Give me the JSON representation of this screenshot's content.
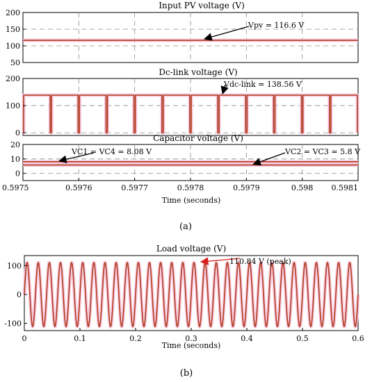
{
  "figure": {
    "caption_a": "(a)",
    "caption_b": "(b)",
    "colors": {
      "trace": "#b03a1e",
      "glow": "#f7c6dd",
      "grid": "#8a8a8a",
      "arrow_black": "#000000",
      "arrow_red": "#d61f1f"
    }
  },
  "chart_data": [
    {
      "id": "pv",
      "type": "line",
      "title": "Input PV voltage (V)",
      "xlim": [
        0.5975,
        0.5981
      ],
      "ylim": [
        50,
        200
      ],
      "yticks": [
        50,
        100,
        150,
        200
      ],
      "ygrid": [
        100,
        150
      ],
      "grid": true,
      "series": [
        {
          "x": [
            0.5975,
            0.5981
          ],
          "y": [
            116.6,
            116.6
          ]
        }
      ],
      "annotation": {
        "text": "Vpv = 116.6 V",
        "x": 0.59785,
        "y": 116.6,
        "color": "black"
      }
    },
    {
      "id": "dclink",
      "type": "line",
      "title": "Dc-link voltage (V)",
      "xlim": [
        0.5975,
        0.5981
      ],
      "ylim": [
        -10,
        200
      ],
      "yticks": [
        0,
        100,
        200
      ],
      "ygrid": [
        0,
        100
      ],
      "grid": true,
      "high": 138.56,
      "low": 0,
      "notch_times": [
        0.5975,
        0.59755,
        0.5976,
        0.59765,
        0.5977,
        0.59775,
        0.5978,
        0.59785,
        0.5979,
        0.59795,
        0.598,
        0.59805,
        0.5981
      ],
      "annotation": {
        "text": "Vdc-link = 138.56 V",
        "x": 0.59785,
        "y": 138.56,
        "color": "black"
      }
    },
    {
      "id": "caps",
      "type": "line",
      "title": "Capacitor voltage (V)",
      "xlim": [
        0.5975,
        0.5981
      ],
      "ylim": [
        -5,
        20
      ],
      "yticks": [
        0,
        10,
        20
      ],
      "ygrid": [
        0,
        10
      ],
      "grid": true,
      "xticks": [
        0.5975,
        0.5976,
        0.5977,
        0.5978,
        0.5979,
        0.598,
        0.5981
      ],
      "xlabel": "Time (seconds)",
      "series": [
        {
          "x": [
            0.5975,
            0.5981
          ],
          "y": [
            8.08,
            8.08
          ]
        },
        {
          "x": [
            0.5975,
            0.5981
          ],
          "y": [
            5.8,
            5.8
          ]
        }
      ],
      "annotations": [
        {
          "text": "VC1 = VC4 = 8.08 V",
          "x": 0.59755,
          "y": 8.08,
          "color": "black"
        },
        {
          "text": "VC2 = VC3 = 5.8 V",
          "x": 0.5979,
          "y": 5.8,
          "color": "black"
        }
      ]
    },
    {
      "id": "load",
      "type": "line",
      "title": "Load voltage (V)",
      "xlim": [
        0,
        0.6
      ],
      "ylim": [
        -125,
        135
      ],
      "yticks": [
        -100,
        0,
        100
      ],
      "xticks": [
        0,
        0.1,
        0.2,
        0.3,
        0.4,
        0.5,
        0.6
      ],
      "grid": false,
      "xlabel": "Time (seconds)",
      "waveform": {
        "shape": "sine",
        "amplitude": 110.84,
        "frequency_hz": 50
      },
      "annotation": {
        "text": "110.84 V (peak)",
        "x": 0.335,
        "y": 110.84,
        "color": "red"
      }
    }
  ]
}
